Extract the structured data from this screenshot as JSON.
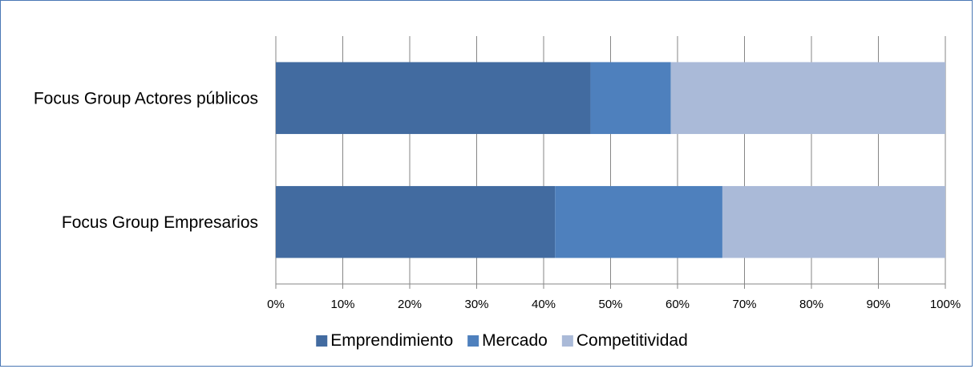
{
  "chart_data": {
    "type": "bar",
    "orientation": "horizontal",
    "stacked": "percent",
    "categories": [
      "Focus Group Actores públicos",
      "Focus Group Empresarios"
    ],
    "series": [
      {
        "name": "Emprendimiento",
        "color": "#426ba0",
        "values": [
          47,
          41.7
        ]
      },
      {
        "name": "Mercado",
        "color": "#4e80bd",
        "values": [
          12,
          25
        ]
      },
      {
        "name": "Competitividad",
        "color": "#aabad8",
        "values": [
          41,
          33.3
        ]
      }
    ],
    "xlim": [
      0,
      100
    ],
    "x_ticks": [
      "0%",
      "10%",
      "20%",
      "30%",
      "40%",
      "50%",
      "60%",
      "70%",
      "80%",
      "90%",
      "100%"
    ],
    "grid": true,
    "legend_position": "bottom"
  }
}
